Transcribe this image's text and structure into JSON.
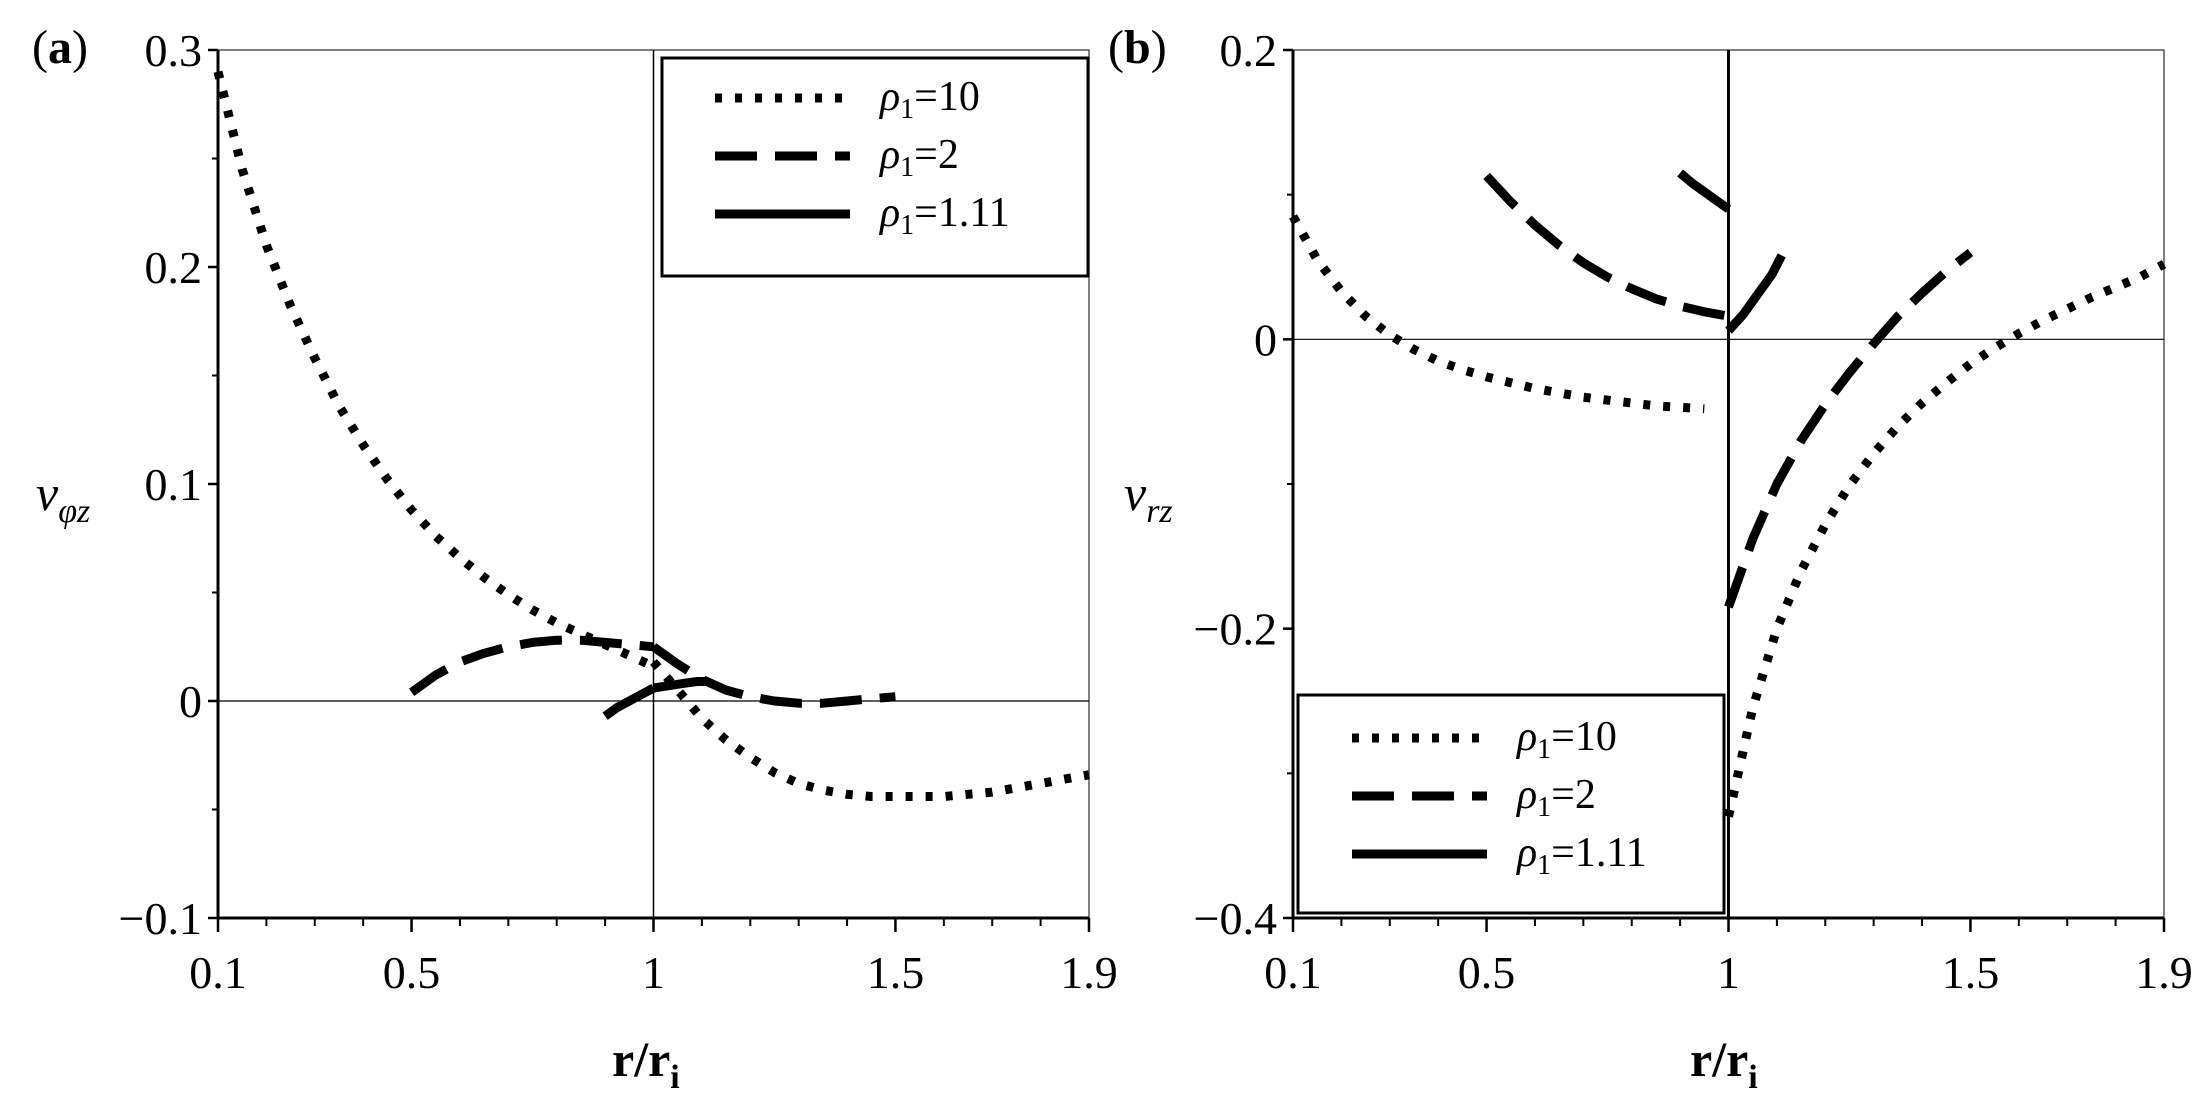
{
  "chart_data": [
    {
      "type": "line",
      "panel_label": "(a)",
      "panel_label_parts": [
        "(",
        "a",
        ")"
      ],
      "ylabel": "v",
      "ylabel_sub": "φz",
      "xlabel": "r/r",
      "xlabel_sub": "i",
      "xlim": [
        0.1,
        1.9
      ],
      "ylim": [
        -0.1,
        0.3
      ],
      "xticks": [
        0.1,
        0.5,
        1,
        1.5,
        1.9
      ],
      "xtick_labels": [
        "0.1",
        "0.5",
        "1",
        "1.5",
        "1.9"
      ],
      "yticks": [
        -0.1,
        0,
        0.1,
        0.2,
        0.3
      ],
      "ytick_labels": [
        "−0.1",
        "0",
        "0.1",
        "0.2",
        "0.3"
      ],
      "reference_lines": {
        "x": 1,
        "y": 0
      },
      "legend": {
        "location": "top-right",
        "entries": [
          {
            "symbol": "ρ",
            "sub": "1",
            "value": "=10",
            "style": "dotted"
          },
          {
            "symbol": "ρ",
            "sub": "1",
            "value": "=2",
            "style": "dashed"
          },
          {
            "symbol": "ρ",
            "sub": "1",
            "value": "=1.11",
            "style": "solid"
          }
        ]
      },
      "series": [
        {
          "name": "ρ1=10",
          "style": "dotted",
          "segments": [
            {
              "x": [
                0.1,
                0.15,
                0.2,
                0.25,
                0.3,
                0.35,
                0.4,
                0.45,
                0.5,
                0.55,
                0.6,
                0.65,
                0.7,
                0.75,
                0.8,
                0.85,
                0.9,
                0.95,
                1.0
              ],
              "y": [
                0.29,
                0.245,
                0.21,
                0.182,
                0.158,
                0.136,
                0.118,
                0.102,
                0.088,
                0.076,
                0.066,
                0.057,
                0.049,
                0.042,
                0.036,
                0.031,
                0.026,
                0.021,
                0.016
              ]
            },
            {
              "x": [
                1.0,
                1.05,
                1.1,
                1.15,
                1.2,
                1.25,
                1.3,
                1.35,
                1.4,
                1.45,
                1.5,
                1.55,
                1.6,
                1.65,
                1.7,
                1.75,
                1.8,
                1.85,
                1.9
              ],
              "y": [
                0.018,
                0.005,
                -0.008,
                -0.018,
                -0.026,
                -0.033,
                -0.038,
                -0.041,
                -0.043,
                -0.044,
                -0.044,
                -0.044,
                -0.044,
                -0.043,
                -0.042,
                -0.04,
                -0.038,
                -0.036,
                -0.034
              ]
            }
          ]
        },
        {
          "name": "ρ1=2",
          "style": "dashed",
          "segments": [
            {
              "x": [
                0.5,
                0.55,
                0.6,
                0.65,
                0.7,
                0.75,
                0.8,
                0.85,
                0.9,
                0.95,
                1.0
              ],
              "y": [
                0.004,
                0.012,
                0.018,
                0.022,
                0.025,
                0.027,
                0.028,
                0.028,
                0.027,
                0.026,
                0.025
              ]
            },
            {
              "x": [
                1.0,
                1.05,
                1.1,
                1.15,
                1.2,
                1.25,
                1.3,
                1.35,
                1.4,
                1.45,
                1.5
              ],
              "y": [
                0.025,
                0.017,
                0.01,
                0.005,
                0.002,
                0.0,
                -0.001,
                -0.001,
                0.0,
                0.001,
                0.002
              ]
            }
          ]
        },
        {
          "name": "ρ1=1.11",
          "style": "solid",
          "segments": [
            {
              "x": [
                0.9,
                0.925,
                0.95,
                0.975,
                1.0
              ],
              "y": [
                -0.007,
                -0.003,
                0.0,
                0.003,
                0.006
              ]
            },
            {
              "x": [
                1.0,
                1.03,
                1.06,
                1.09,
                1.11
              ],
              "y": [
                0.006,
                0.007,
                0.008,
                0.009,
                0.009
              ]
            }
          ]
        }
      ]
    },
    {
      "type": "line",
      "panel_label": "(b)",
      "panel_label_parts": [
        "(",
        "b",
        ")"
      ],
      "ylabel": "v",
      "ylabel_sub": "rz",
      "xlabel": "r/r",
      "xlabel_sub": "i",
      "xlim": [
        0.1,
        1.9
      ],
      "ylim": [
        -0.4,
        0.2
      ],
      "xticks": [
        0.1,
        0.5,
        1,
        1.5,
        1.9
      ],
      "xtick_labels": [
        "0.1",
        "0.5",
        "1",
        "1.5",
        "1.9"
      ],
      "yticks": [
        -0.4,
        -0.2,
        0,
        0.2
      ],
      "ytick_labels": [
        "−0.4",
        "−0.2",
        "0",
        "0.2"
      ],
      "reference_lines": {
        "x": 1,
        "y": 0
      },
      "legend": {
        "location": "bottom-left",
        "entries": [
          {
            "symbol": "ρ",
            "sub": "1",
            "value": "=10",
            "style": "dotted"
          },
          {
            "symbol": "ρ",
            "sub": "1",
            "value": "=2",
            "style": "dashed"
          },
          {
            "symbol": "ρ",
            "sub": "1",
            "value": "=1.11",
            "style": "solid"
          }
        ]
      },
      "series": [
        {
          "name": "ρ1=10",
          "style": "dotted",
          "segments": [
            {
              "x": [
                0.1,
                0.15,
                0.2,
                0.25,
                0.3,
                0.35,
                0.4,
                0.45,
                0.5,
                0.55,
                0.6,
                0.65,
                0.7,
                0.75,
                0.8,
                0.85,
                0.9,
                0.95
              ],
              "y": [
                0.085,
                0.055,
                0.033,
                0.016,
                0.003,
                -0.007,
                -0.015,
                -0.021,
                -0.026,
                -0.03,
                -0.034,
                -0.037,
                -0.04,
                -0.042,
                -0.044,
                -0.046,
                -0.047,
                -0.048
              ]
            },
            {
              "x": [
                1.0,
                1.05,
                1.1,
                1.15,
                1.2,
                1.25,
                1.3,
                1.35,
                1.4,
                1.45,
                1.5,
                1.55,
                1.6,
                1.65,
                1.7,
                1.75,
                1.8,
                1.85,
                1.9
              ],
              "y": [
                -0.33,
                -0.255,
                -0.2,
                -0.16,
                -0.128,
                -0.101,
                -0.079,
                -0.06,
                -0.044,
                -0.03,
                -0.017,
                -0.006,
                0.004,
                0.013,
                0.021,
                0.029,
                0.036,
                0.043,
                0.052
              ]
            }
          ]
        },
        {
          "name": "ρ1=2",
          "style": "dashed",
          "segments": [
            {
              "x": [
                0.5,
                0.55,
                0.6,
                0.65,
                0.7,
                0.75,
                0.8,
                0.85,
                0.9,
                0.95,
                1.0
              ],
              "y": [
                0.113,
                0.095,
                0.079,
                0.065,
                0.053,
                0.043,
                0.035,
                0.028,
                0.023,
                0.019,
                0.016
              ]
            },
            {
              "x": [
                1.0,
                1.05,
                1.1,
                1.15,
                1.2,
                1.25,
                1.3,
                1.35,
                1.4,
                1.45,
                1.5
              ],
              "y": [
                -0.185,
                -0.138,
                -0.1,
                -0.07,
                -0.045,
                -0.023,
                -0.003,
                0.016,
                0.032,
                0.047,
                0.06
              ]
            }
          ]
        },
        {
          "name": "ρ1=1.11",
          "style": "solid",
          "segments": [
            {
              "x": [
                0.9,
                0.925,
                0.95,
                0.975,
                1.0
              ],
              "y": [
                0.115,
                0.108,
                0.102,
                0.096,
                0.09
              ]
            },
            {
              "x": [
                1.0,
                1.03,
                1.06,
                1.09,
                1.11
              ],
              "y": [
                0.006,
                0.017,
                0.031,
                0.045,
                0.058
              ]
            }
          ]
        }
      ]
    }
  ]
}
